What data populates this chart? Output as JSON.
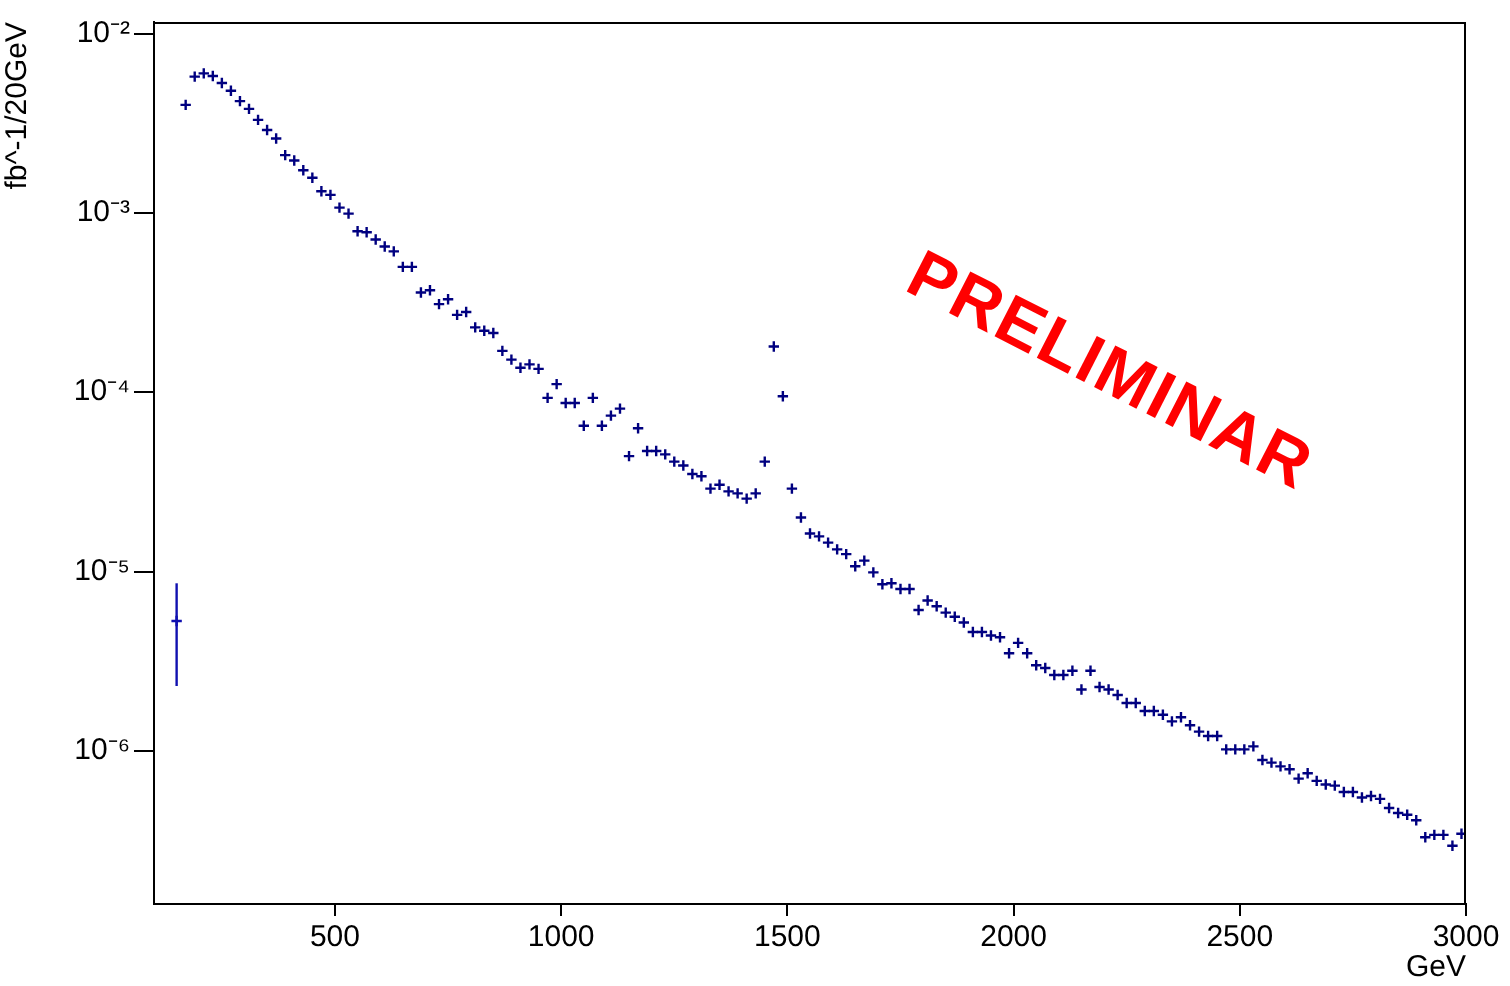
{
  "chart_data": {
    "type": "scatter",
    "xlabel": "GeV",
    "ylabel": "fb^-1/20GeV",
    "annotations": [
      "PRELIMINAR"
    ],
    "log": "y",
    "grid": false,
    "legend": false,
    "marker": "cross",
    "xlim": [
      100,
      3000
    ],
    "xticks": [
      500,
      1000,
      1500,
      2000,
      2500,
      3000
    ],
    "ylim": [
      1.4e-07,
      0.0116
    ],
    "yticks": [
      {
        "value": 1e-06,
        "label": "10⁻⁶"
      },
      {
        "value": 1e-05,
        "label": "10⁻⁵"
      },
      {
        "value": 0.0001,
        "label": "10⁻⁴"
      },
      {
        "value": 0.001,
        "label": "10⁻³"
      },
      {
        "value": 0.01,
        "label": "10⁻²"
      }
    ],
    "series": [
      {
        "color": "#1010b0",
        "x": [
          150
        ],
        "values": [
          5.3e-06
        ],
        "errors": [
          [
            2.3e-06,
            8.6e-06
          ]
        ]
      },
      {
        "color": "#000080",
        "x": [
          170,
          190,
          210,
          230,
          250,
          270,
          290,
          310,
          330,
          350,
          370,
          390,
          410,
          430,
          450,
          470,
          490,
          510,
          530,
          550,
          570,
          590,
          610,
          630,
          650,
          670,
          690,
          710,
          730,
          750,
          770,
          790,
          810,
          830,
          850,
          870,
          890,
          910,
          930,
          950,
          970,
          990,
          1010,
          1030,
          1050,
          1070,
          1090,
          1110,
          1130,
          1150,
          1170,
          1190,
          1210,
          1230,
          1250,
          1270,
          1290,
          1310,
          1330,
          1350,
          1370,
          1390,
          1410,
          1430,
          1450,
          1470,
          1490,
          1510,
          1530,
          1550,
          1570,
          1590,
          1610,
          1630,
          1650,
          1670,
          1690,
          1710,
          1730,
          1750,
          1770,
          1790,
          1810,
          1830,
          1850,
          1870,
          1890,
          1910,
          1930,
          1950,
          1970,
          1990,
          2010,
          2030,
          2050,
          2070,
          2090,
          2110,
          2130,
          2150,
          2170,
          2190,
          2210,
          2230,
          2250,
          2270,
          2290,
          2310,
          2330,
          2350,
          2370,
          2390,
          2410,
          2430,
          2450,
          2470,
          2490,
          2510,
          2530,
          2550,
          2570,
          2590,
          2610,
          2630,
          2650,
          2670,
          2690,
          2710,
          2730,
          2750,
          2770,
          2790,
          2810,
          2830,
          2850,
          2870,
          2890,
          2910,
          2930,
          2950,
          2970,
          2990
        ],
        "values": [
          0.004,
          0.00575,
          0.006,
          0.0058,
          0.0053,
          0.0048,
          0.0042,
          0.0038,
          0.0033,
          0.0029,
          0.0026,
          0.0021,
          0.00196,
          0.00173,
          0.00157,
          0.00132,
          0.00126,
          0.00107,
          0.00099,
          0.00079,
          0.00078,
          0.00071,
          0.00065,
          0.00061,
          0.0005,
          0.0005,
          0.00036,
          0.00037,
          0.00031,
          0.00033,
          0.00027,
          0.00028,
          0.00023,
          0.00022,
          0.000214,
          0.00017,
          0.000152,
          0.000137,
          0.000143,
          0.000135,
          9.3e-05,
          0.000111,
          8.7e-05,
          8.7e-05,
          6.5e-05,
          9.3e-05,
          6.5e-05,
          7.4e-05,
          8.1e-05,
          4.4e-05,
          6.3e-05,
          4.7e-05,
          4.7e-05,
          4.5e-05,
          4.1e-05,
          3.9e-05,
          3.5e-05,
          3.4e-05,
          2.9e-05,
          3.05e-05,
          2.8e-05,
          2.73e-05,
          2.55e-05,
          2.73e-05,
          4.1e-05,
          0.00018,
          9.5e-05,
          2.9e-05,
          2e-05,
          1.63e-05,
          1.57e-05,
          1.45e-05,
          1.33e-05,
          1.25e-05,
          1.07e-05,
          1.15e-05,
          9.9e-06,
          8.5e-06,
          8.6e-06,
          8e-06,
          8e-06,
          6.1e-06,
          6.9e-06,
          6.4e-06,
          5.9e-06,
          5.6e-06,
          5.2e-06,
          4.6e-06,
          4.6e-06,
          4.4e-06,
          4.3e-06,
          3.5e-06,
          4e-06,
          3.5e-06,
          3e-06,
          2.9e-06,
          2.65e-06,
          2.65e-06,
          2.8e-06,
          2.2e-06,
          2.8e-06,
          2.27e-06,
          2.2e-06,
          2.05e-06,
          1.85e-06,
          1.85e-06,
          1.67e-06,
          1.67e-06,
          1.59e-06,
          1.46e-06,
          1.54e-06,
          1.39e-06,
          1.28e-06,
          1.21e-06,
          1.21e-06,
          1.02e-06,
          1.02e-06,
          1.02e-06,
          1.06e-06,
          8.9e-07,
          8.6e-07,
          8.2e-07,
          7.9e-07,
          7e-07,
          7.5e-07,
          6.8e-07,
          6.5e-07,
          6.4e-07,
          5.9e-07,
          5.9e-07,
          5.5e-07,
          5.6e-07,
          5.4e-07,
          4.8e-07,
          4.5e-07,
          4.4e-07,
          4.1e-07,
          3.3e-07,
          3.4e-07,
          3.4e-07,
          2.96e-07,
          3.45e-07
        ]
      }
    ]
  }
}
